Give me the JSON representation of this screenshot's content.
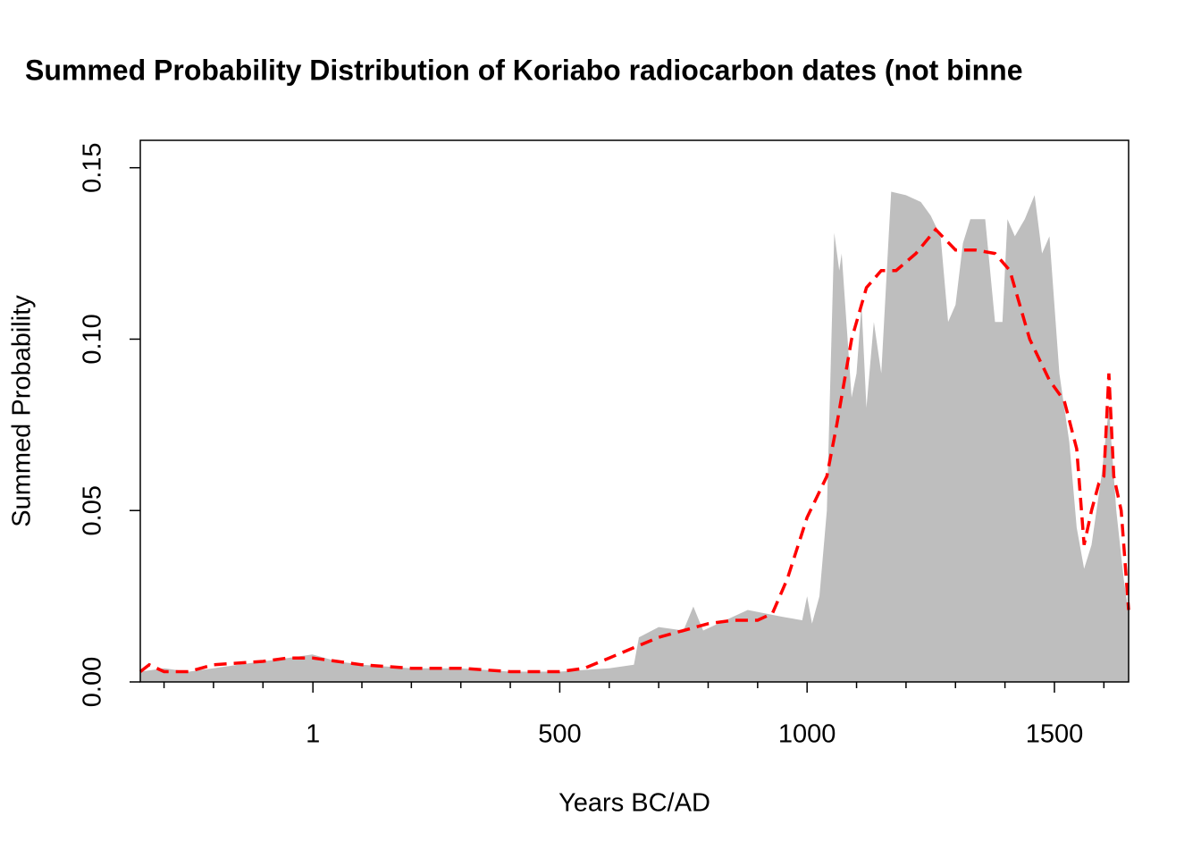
{
  "chart_data": {
    "type": "area-line",
    "title": "Summed Probability Distribution of Koriabo radiocarbon dates (not binne",
    "xlabel": "Years BC/AD",
    "ylabel": "Summed Probability",
    "xlim": [
      -348,
      1650
    ],
    "ylim": [
      0,
      0.158
    ],
    "xticks": [
      1,
      500,
      1000,
      1500
    ],
    "xminor_ticks": [
      -300,
      -200,
      -100,
      100,
      200,
      300,
      400,
      600,
      700,
      800,
      900,
      1100,
      1200,
      1300,
      1400,
      1600
    ],
    "yticks": [
      {
        "value": 0,
        "label": "0.00"
      },
      {
        "value": 0.05,
        "label": "0.05"
      },
      {
        "value": 0.1,
        "label": "0.10"
      },
      {
        "value": 0.15,
        "label": "0.15"
      }
    ],
    "series": [
      {
        "kind": "area",
        "color": "#bebebe",
        "x": [
          -348,
          -300,
          -250,
          -200,
          -150,
          -100,
          -50,
          0,
          50,
          100,
          200,
          300,
          400,
          500,
          600,
          650,
          660,
          700,
          750,
          770,
          790,
          850,
          880,
          950,
          990,
          1000,
          1010,
          1025,
          1040,
          1055,
          1065,
          1070,
          1090,
          1100,
          1110,
          1120,
          1135,
          1150,
          1165,
          1170,
          1200,
          1230,
          1250,
          1270,
          1285,
          1300,
          1315,
          1330,
          1360,
          1380,
          1395,
          1405,
          1420,
          1440,
          1460,
          1475,
          1490,
          1510,
          1530,
          1545,
          1560,
          1575,
          1590,
          1595,
          1610,
          1625,
          1640,
          1650
        ],
        "values": [
          0.003,
          0.004,
          0.003,
          0.004,
          0.005,
          0.006,
          0.007,
          0.008,
          0.006,
          0.005,
          0.004,
          0.004,
          0.003,
          0.003,
          0.004,
          0.005,
          0.013,
          0.016,
          0.015,
          0.022,
          0.015,
          0.019,
          0.021,
          0.019,
          0.018,
          0.025,
          0.017,
          0.025,
          0.05,
          0.131,
          0.12,
          0.125,
          0.083,
          0.09,
          0.11,
          0.08,
          0.105,
          0.09,
          0.13,
          0.143,
          0.142,
          0.14,
          0.136,
          0.13,
          0.105,
          0.11,
          0.128,
          0.135,
          0.135,
          0.105,
          0.105,
          0.135,
          0.13,
          0.135,
          0.142,
          0.125,
          0.13,
          0.09,
          0.07,
          0.045,
          0.033,
          0.04,
          0.055,
          0.06,
          0.08,
          0.05,
          0.03,
          0.02
        ]
      },
      {
        "kind": "line",
        "color": "#ff0000",
        "x": [
          -348,
          -330,
          -300,
          -250,
          -200,
          -100,
          -50,
          0,
          50,
          100,
          200,
          300,
          400,
          500,
          550,
          600,
          650,
          700,
          750,
          800,
          850,
          900,
          930,
          960,
          1000,
          1040,
          1060,
          1090,
          1120,
          1150,
          1180,
          1220,
          1260,
          1300,
          1340,
          1380,
          1410,
          1450,
          1490,
          1520,
          1545,
          1560,
          1575,
          1590,
          1600,
          1610,
          1620,
          1635,
          1650
        ],
        "values": [
          0.003,
          0.005,
          0.003,
          0.003,
          0.005,
          0.006,
          0.007,
          0.007,
          0.006,
          0.005,
          0.004,
          0.004,
          0.003,
          0.003,
          0.004,
          0.007,
          0.01,
          0.013,
          0.015,
          0.017,
          0.018,
          0.018,
          0.02,
          0.03,
          0.048,
          0.06,
          0.075,
          0.1,
          0.115,
          0.12,
          0.12,
          0.125,
          0.132,
          0.126,
          0.126,
          0.125,
          0.12,
          0.1,
          0.088,
          0.082,
          0.068,
          0.04,
          0.05,
          0.058,
          0.06,
          0.09,
          0.06,
          0.05,
          0.021
        ]
      }
    ]
  }
}
